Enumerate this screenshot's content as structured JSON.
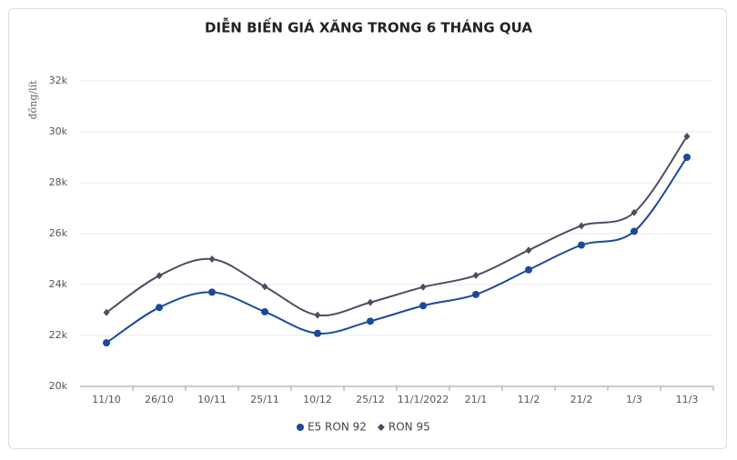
{
  "chart_data": {
    "type": "line",
    "title": "DIỄN BIẾN GIÁ XĂNG TRONG 6 THÁNG QUA",
    "y_label": "đồng/lít",
    "categories": [
      "11/10",
      "26/10",
      "10/11",
      "25/11",
      "10/12",
      "25/12",
      "11/1/2022",
      "21/1",
      "11/2",
      "21/2",
      "1/3",
      "11/3"
    ],
    "series": [
      {
        "name": "E5 RON 92",
        "color": "#1b4a9a",
        "marker": "circle",
        "values": [
          21710,
          23100,
          23700,
          22930,
          22080,
          22560,
          23170,
          23610,
          24580,
          25550,
          26090,
          29000
        ]
      },
      {
        "name": "RON 95",
        "color": "#514b62",
        "marker": "diamond",
        "values": [
          22900,
          24350,
          25000,
          23920,
          22800,
          23300,
          23900,
          24360,
          25350,
          26310,
          26830,
          29820
        ]
      }
    ],
    "ylim": [
      20000,
      32000
    ],
    "yticks": [
      {
        "value": 20000,
        "label": "20k"
      },
      {
        "value": 22000,
        "label": "22k"
      },
      {
        "value": 24000,
        "label": "24k"
      },
      {
        "value": 26000,
        "label": "26k"
      },
      {
        "value": 28000,
        "label": "28k"
      },
      {
        "value": 30000,
        "label": "30k"
      },
      {
        "value": 32000,
        "label": "32k"
      }
    ],
    "grid": true,
    "legend": "bottom"
  }
}
